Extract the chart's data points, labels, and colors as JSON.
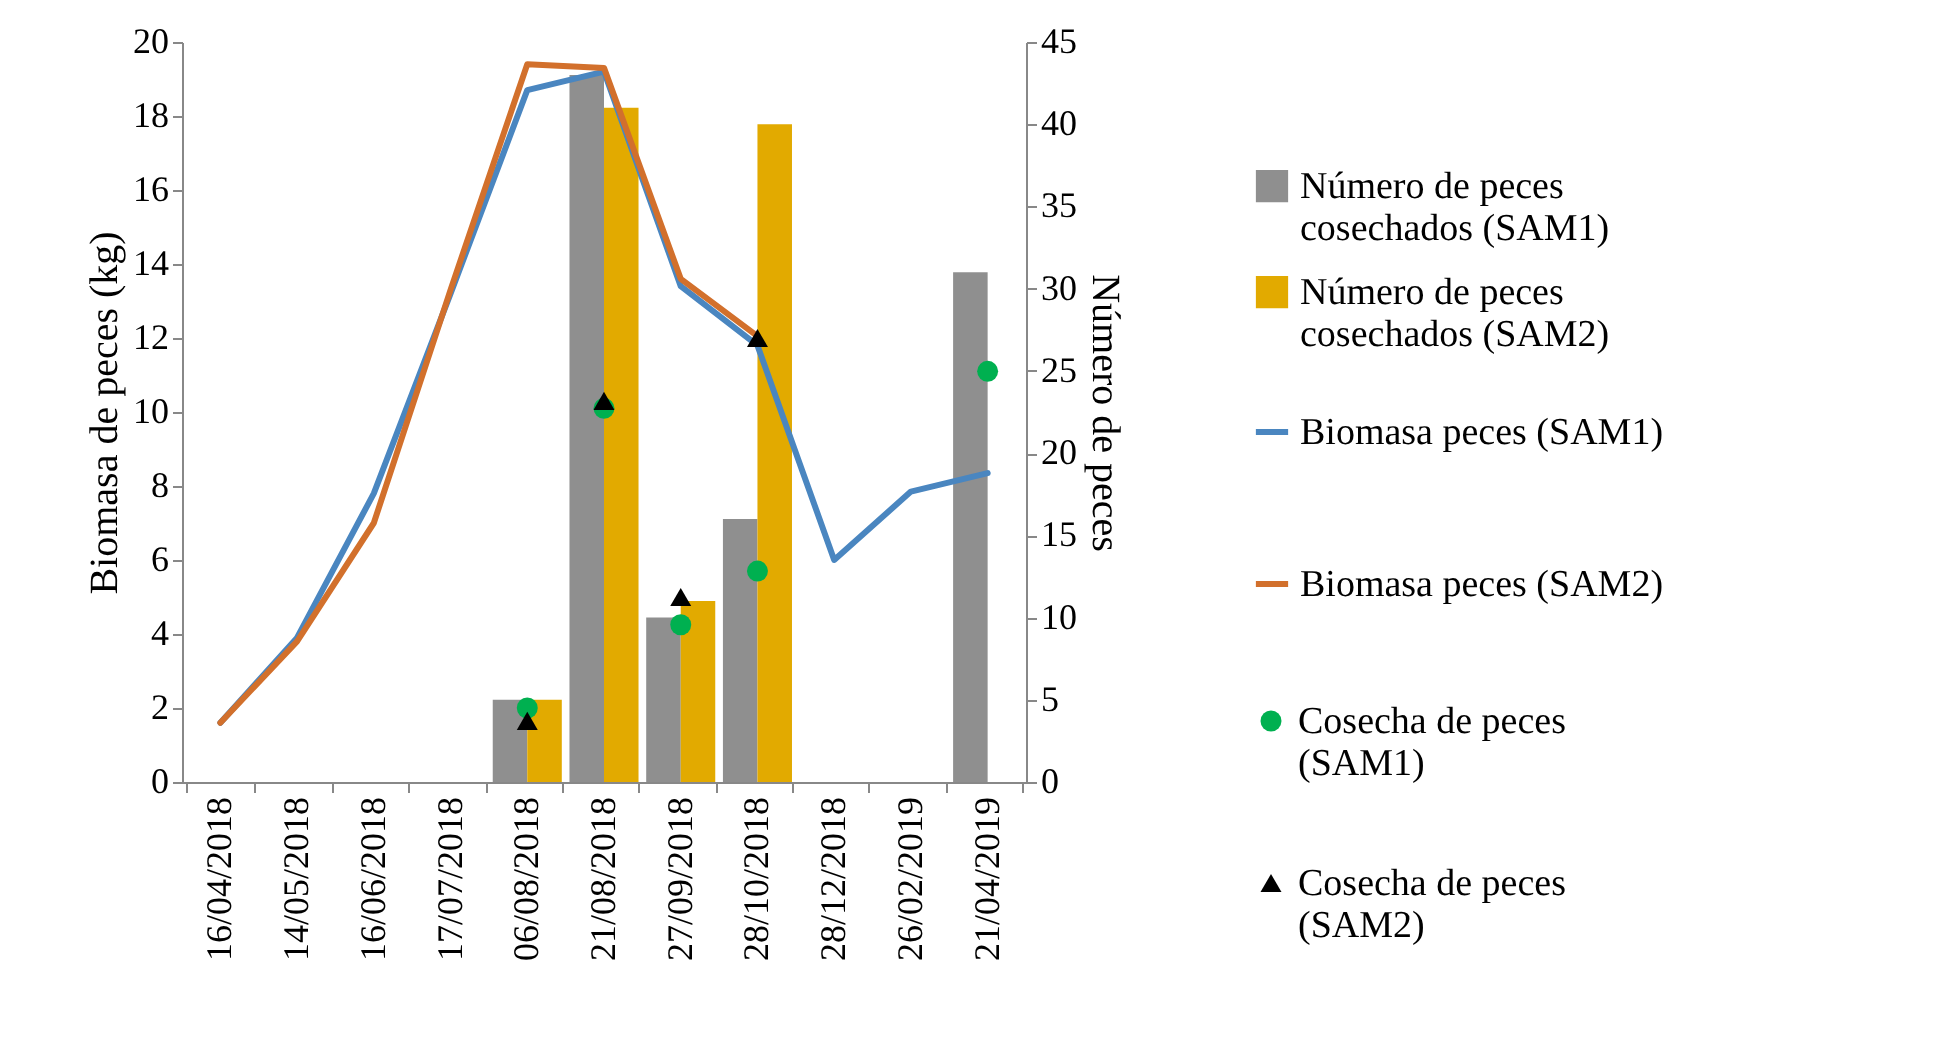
{
  "chart_data": {
    "type": "bar",
    "categories": [
      "16/04/2018",
      "14/05/2018",
      "16/06/2018",
      "17/07/2018",
      "06/08/2018",
      "21/08/2018",
      "27/09/2018",
      "28/10/2018",
      "28/12/2018",
      "26/02/2019",
      "21/04/2019"
    ],
    "ylabel": "Biomasa de peces (kg)",
    "y2label": "Número de peces",
    "ylim": [
      0,
      20
    ],
    "yticks": [
      0,
      2,
      4,
      6,
      8,
      10,
      12,
      14,
      16,
      18,
      20
    ],
    "y2lim": [
      0,
      45
    ],
    "y2ticks": [
      0,
      5,
      10,
      15,
      20,
      25,
      30,
      35,
      40,
      45
    ],
    "grid": false,
    "legend": "right",
    "series": [
      {
        "name": "Número de peces cosechados (SAM1)",
        "type": "bar",
        "axis": "y2",
        "color": "#8f8f8f",
        "values": [
          null,
          null,
          null,
          null,
          5,
          43,
          10,
          16,
          null,
          null,
          31
        ]
      },
      {
        "name": "Número de peces cosechados (SAM2)",
        "type": "bar",
        "axis": "y2",
        "color": "#e2aa00",
        "values": [
          null,
          null,
          null,
          null,
          5,
          41,
          11,
          40,
          null,
          null,
          null
        ]
      },
      {
        "name": "Biomasa peces (SAM1)",
        "type": "line",
        "color": "#4a86c0",
        "line_style": "solid",
        "values": [
          1.6,
          3.9,
          7.8,
          13.2,
          18.7,
          19.2,
          13.4,
          11.8,
          6.0,
          7.85,
          8.35
        ]
      },
      {
        "name": "Biomasa peces (SAM2)",
        "type": "line",
        "color": "#d2702c",
        "line_style": "solid",
        "values": [
          1.6,
          3.8,
          7.0,
          13.3,
          19.4,
          19.3,
          13.6,
          12.05,
          null,
          null,
          null
        ]
      },
      {
        "name": "Cosecha de peces (SAM1)",
        "type": "scatter",
        "color": "#00b050",
        "marker": "circle",
        "values": [
          null,
          null,
          null,
          null,
          2.0,
          10.1,
          4.25,
          5.7,
          null,
          null,
          11.1
        ]
      },
      {
        "name": "Cosecha de peces (SAM2)",
        "type": "scatter",
        "color": "#000000",
        "marker": "triangle",
        "values": [
          null,
          null,
          null,
          null,
          1.65,
          10.3,
          5.0,
          12.0,
          null,
          null,
          null
        ]
      }
    ]
  }
}
